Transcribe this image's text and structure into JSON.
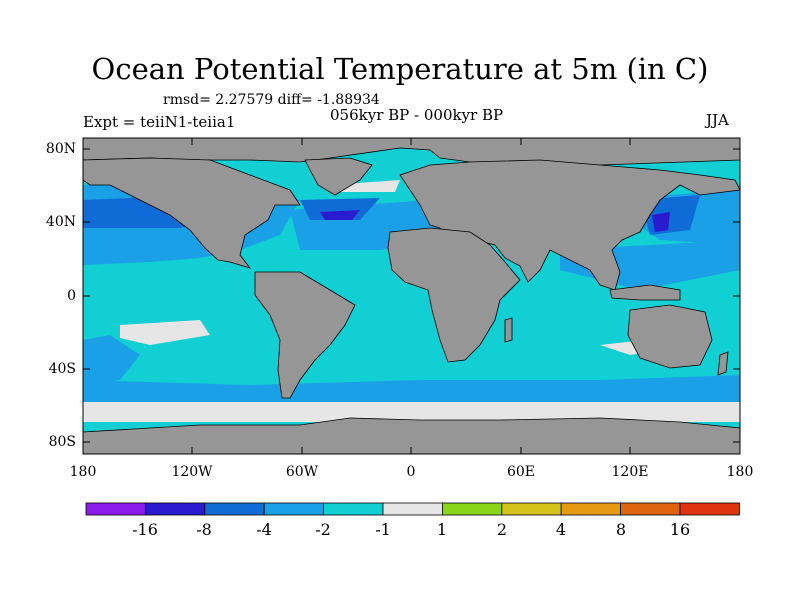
{
  "title": "Ocean Potential Temperature at 5m (in C)",
  "stats": "rmsd= 2.27579 diff= -1.88934",
  "experiment": "Expt = teiiN1-teiia1",
  "period": "056kyr BP - 000kyr BP",
  "season": "JJA",
  "y_axis_labels": [
    "80N",
    "40N",
    "0",
    "40S",
    "80S"
  ],
  "x_axis_labels": [
    "180",
    "120W",
    "60W",
    "0",
    "60E",
    "120E",
    "180"
  ],
  "colorbar": {
    "colors": [
      "#8a1be8",
      "#2a1bd0",
      "#0f6cd6",
      "#1aa0e6",
      "#12cfd4",
      "#e6e6e6",
      "#8ad41a",
      "#d4c21a",
      "#e69a14",
      "#e0640f",
      "#e0320f"
    ],
    "labels": [
      "-16",
      "-8",
      "-4",
      "-2",
      "-1",
      "1",
      "2",
      "4",
      "8",
      "16"
    ]
  },
  "map_colors": {
    "land": "#969696",
    "ocean_base": "#12cfd4",
    "ocean_moderate": "#1aa0e6",
    "ocean_strong": "#0f6cd6",
    "ocean_extreme": "#2a1bd0",
    "neutral": "#e6e6e6",
    "warm": "#8ad41a"
  }
}
